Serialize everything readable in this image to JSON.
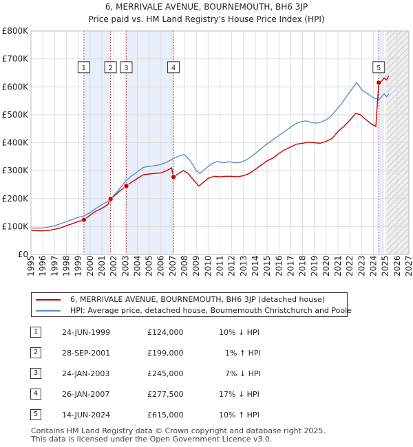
{
  "chart_data": {
    "type": "line",
    "title": "6, MERRIVALE AVENUE, BOURNEMOUTH, BH6 3JP",
    "subtitle": "Price paid vs. HM Land Registry's House Price Index (HPI)",
    "xlim": [
      1995,
      2027
    ],
    "ylim": [
      0,
      800000
    ],
    "x_ticks": [
      "1995",
      "1996",
      "1997",
      "1998",
      "1999",
      "2000",
      "2001",
      "2002",
      "2003",
      "2004",
      "2005",
      "2006",
      "2007",
      "2008",
      "2009",
      "2010",
      "2011",
      "2012",
      "2013",
      "2014",
      "2015",
      "2016",
      "2017",
      "2018",
      "2019",
      "2020",
      "2021",
      "2022",
      "2023",
      "2024",
      "2025",
      "2026",
      "2027"
    ],
    "y_ticks": [
      {
        "value": 0,
        "label": "£0"
      },
      {
        "value": 100000,
        "label": "£100K"
      },
      {
        "value": 200000,
        "label": "£200K"
      },
      {
        "value": 300000,
        "label": "£300K"
      },
      {
        "value": 400000,
        "label": "£400K"
      },
      {
        "value": 500000,
        "label": "£500K"
      },
      {
        "value": 600000,
        "label": "£600K"
      },
      {
        "value": 700000,
        "label": "£700K"
      },
      {
        "value": 800000,
        "label": "£800K"
      }
    ],
    "shaded_ranges": [
      [
        1999.48,
        2001.74
      ],
      [
        2003.07,
        2007.07
      ],
      [
        2024.45,
        2024.9
      ]
    ],
    "future_start": 2025.1,
    "series": [
      {
        "name": "6, MERRIVALE AVENUE, BOURNEMOUTH, BH6 3JP (detached house)",
        "color": "#cc0000",
        "points": [
          [
            1995.0,
            86000
          ],
          [
            1995.5,
            85000
          ],
          [
            1996.0,
            84500
          ],
          [
            1996.5,
            86000
          ],
          [
            1997.0,
            90000
          ],
          [
            1997.5,
            95000
          ],
          [
            1998.0,
            103000
          ],
          [
            1998.5,
            110000
          ],
          [
            1999.0,
            118000
          ],
          [
            1999.48,
            124000
          ],
          [
            2000.0,
            140000
          ],
          [
            2000.5,
            155000
          ],
          [
            2001.0,
            165000
          ],
          [
            2001.5,
            178000
          ],
          [
            2001.74,
            199000
          ],
          [
            2002.2,
            215000
          ],
          [
            2002.6,
            230000
          ],
          [
            2003.07,
            245000
          ],
          [
            2003.5,
            258000
          ],
          [
            2004.0,
            272000
          ],
          [
            2004.5,
            285000
          ],
          [
            2005.0,
            288000
          ],
          [
            2005.5,
            290000
          ],
          [
            2006.0,
            292000
          ],
          [
            2006.5,
            300000
          ],
          [
            2006.9,
            310000
          ],
          [
            2007.07,
            277500
          ],
          [
            2007.5,
            290000
          ],
          [
            2007.9,
            300000
          ],
          [
            2008.3,
            290000
          ],
          [
            2008.8,
            265000
          ],
          [
            2009.2,
            245000
          ],
          [
            2009.6,
            258000
          ],
          [
            2010.0,
            272000
          ],
          [
            2010.5,
            280000
          ],
          [
            2011.0,
            278000
          ],
          [
            2011.5,
            280000
          ],
          [
            2012.0,
            280000
          ],
          [
            2012.5,
            278000
          ],
          [
            2013.0,
            282000
          ],
          [
            2013.5,
            290000
          ],
          [
            2014.0,
            305000
          ],
          [
            2014.5,
            320000
          ],
          [
            2015.0,
            335000
          ],
          [
            2015.5,
            345000
          ],
          [
            2016.0,
            362000
          ],
          [
            2016.5,
            375000
          ],
          [
            2017.0,
            385000
          ],
          [
            2017.5,
            395000
          ],
          [
            2018.0,
            398000
          ],
          [
            2018.5,
            402000
          ],
          [
            2019.0,
            400000
          ],
          [
            2019.5,
            398000
          ],
          [
            2020.0,
            405000
          ],
          [
            2020.5,
            415000
          ],
          [
            2021.0,
            440000
          ],
          [
            2021.5,
            458000
          ],
          [
            2022.0,
            480000
          ],
          [
            2022.5,
            505000
          ],
          [
            2022.9,
            500000
          ],
          [
            2023.3,
            485000
          ],
          [
            2023.8,
            468000
          ],
          [
            2024.2,
            458000
          ],
          [
            2024.45,
            615000
          ],
          [
            2024.7,
            620000
          ],
          [
            2024.9,
            632000
          ],
          [
            2025.1,
            625000
          ],
          [
            2025.3,
            640000
          ]
        ]
      },
      {
        "name": "HPI: Average price, detached house, Bournemouth Christchurch and Poole",
        "color": "#5b8ec9",
        "points": [
          [
            1995.0,
            95000
          ],
          [
            1995.5,
            94000
          ],
          [
            1996.0,
            95000
          ],
          [
            1996.5,
            98000
          ],
          [
            1997.0,
            103000
          ],
          [
            1997.5,
            110000
          ],
          [
            1998.0,
            118000
          ],
          [
            1998.5,
            125000
          ],
          [
            1999.0,
            133000
          ],
          [
            1999.5,
            138000
          ],
          [
            2000.0,
            150000
          ],
          [
            2000.5,
            165000
          ],
          [
            2001.0,
            178000
          ],
          [
            2001.5,
            190000
          ],
          [
            2002.0,
            210000
          ],
          [
            2002.5,
            235000
          ],
          [
            2003.0,
            262000
          ],
          [
            2003.5,
            280000
          ],
          [
            2004.0,
            295000
          ],
          [
            2004.5,
            312000
          ],
          [
            2005.0,
            315000
          ],
          [
            2005.5,
            318000
          ],
          [
            2006.0,
            322000
          ],
          [
            2006.5,
            330000
          ],
          [
            2007.0,
            342000
          ],
          [
            2007.5,
            352000
          ],
          [
            2008.0,
            358000
          ],
          [
            2008.5,
            335000
          ],
          [
            2009.0,
            300000
          ],
          [
            2009.3,
            290000
          ],
          [
            2009.8,
            308000
          ],
          [
            2010.3,
            325000
          ],
          [
            2010.8,
            333000
          ],
          [
            2011.3,
            328000
          ],
          [
            2011.8,
            332000
          ],
          [
            2012.3,
            328000
          ],
          [
            2012.8,
            330000
          ],
          [
            2013.3,
            340000
          ],
          [
            2013.8,
            355000
          ],
          [
            2014.3,
            372000
          ],
          [
            2014.8,
            390000
          ],
          [
            2015.3,
            405000
          ],
          [
            2015.8,
            420000
          ],
          [
            2016.3,
            435000
          ],
          [
            2016.8,
            450000
          ],
          [
            2017.3,
            465000
          ],
          [
            2017.8,
            475000
          ],
          [
            2018.3,
            478000
          ],
          [
            2018.8,
            472000
          ],
          [
            2019.3,
            470000
          ],
          [
            2019.8,
            478000
          ],
          [
            2020.3,
            490000
          ],
          [
            2020.8,
            515000
          ],
          [
            2021.3,
            540000
          ],
          [
            2021.8,
            570000
          ],
          [
            2022.3,
            600000
          ],
          [
            2022.6,
            615000
          ],
          [
            2023.0,
            590000
          ],
          [
            2023.5,
            575000
          ],
          [
            2024.0,
            560000
          ],
          [
            2024.5,
            555000
          ],
          [
            2024.9,
            575000
          ],
          [
            2025.1,
            565000
          ],
          [
            2025.3,
            575000
          ]
        ]
      }
    ],
    "sales": [
      {
        "num": "1",
        "x": 1999.48,
        "price": 124000
      },
      {
        "num": "2",
        "x": 2001.74,
        "price": 199000
      },
      {
        "num": "3",
        "x": 2003.07,
        "price": 245000
      },
      {
        "num": "4",
        "x": 2007.07,
        "price": 277500
      },
      {
        "num": "5",
        "x": 2024.45,
        "price": 615000
      }
    ],
    "marker_label_value": 670000
  },
  "legend": {
    "red_label": "6, MERRIVALE AVENUE, BOURNEMOUTH, BH6 3JP (detached house)",
    "blue_label": "HPI: Average price, detached house, Bournemouth Christchurch and Poole"
  },
  "transactions": [
    {
      "num": "1",
      "date": "24-JUN-1999",
      "price": "£124,000",
      "hpi": "10% ↓ HPI"
    },
    {
      "num": "2",
      "date": "28-SEP-2001",
      "price": "£199,000",
      "hpi": "1% ↑ HPI"
    },
    {
      "num": "3",
      "date": "24-JAN-2003",
      "price": "£245,000",
      "hpi": "7% ↓ HPI"
    },
    {
      "num": "4",
      "date": "26-JAN-2007",
      "price": "£277,500",
      "hpi": "17% ↓ HPI"
    },
    {
      "num": "5",
      "date": "14-JUN-2024",
      "price": "£615,000",
      "hpi": "10% ↑ HPI"
    }
  ],
  "footer": {
    "line1": "Contains HM Land Registry data © Crown copyright and database right 2025.",
    "line2": "This data is licensed under the Open Government Licence v3.0."
  }
}
